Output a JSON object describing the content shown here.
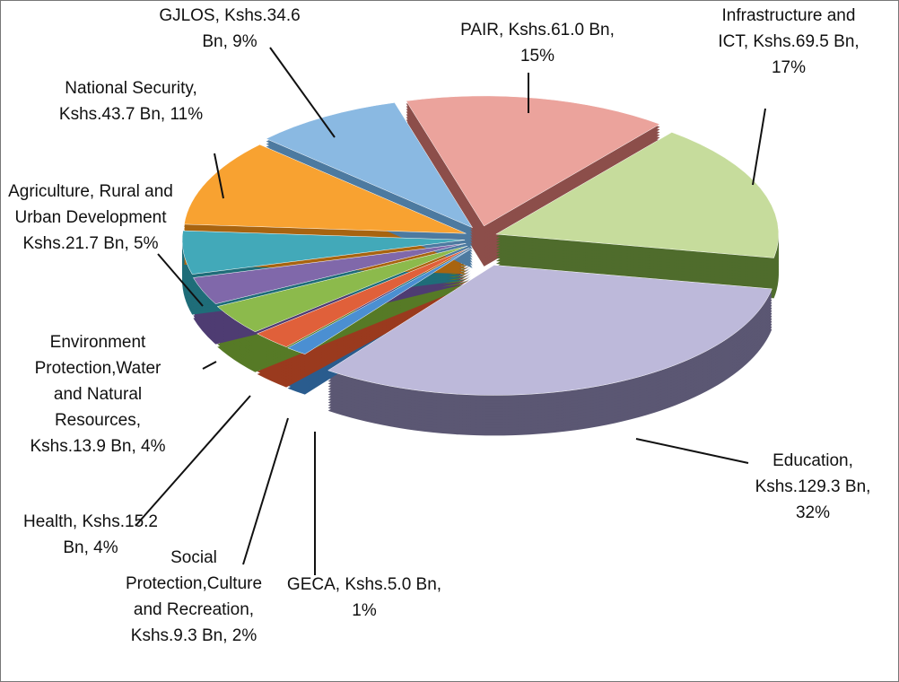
{
  "chart_data": {
    "type": "pie",
    "three_d": true,
    "exploded": true,
    "values": [
      61.0,
      69.5,
      129.3,
      5.0,
      9.3,
      15.2,
      13.9,
      21.7,
      43.7,
      34.6
    ],
    "value_labels": [
      "PAIR, Kshs.61.0 Bn, 15%",
      "Infrastructure and ICT, Kshs.69.5 Bn, 17%",
      "Education, Kshs.129.3 Bn, 32%",
      "GECA, Kshs.5.0 Bn, 1%",
      "Social Protection,Culture and Recreation, Kshs.9.3 Bn, 2%",
      "Health, Kshs.15.2 Bn, 4%",
      "Environment Protection,Water and Natural Resources, Kshs.13.9 Bn, 4%",
      "Agriculture, Rural and Urban Development Kshs.21.7 Bn, 5%",
      "National Security, Kshs.43.7 Bn, 11%",
      "GJLOS, Kshs.34.6 Bn, 9%"
    ],
    "colors": [
      "#eba39c",
      "#c6dc9c",
      "#bdb9da",
      "#4b8fd2",
      "#e0603a",
      "#8cba4c",
      "#8068aa",
      "#42a9b9",
      "#f8a231",
      "#8ab9e2"
    ],
    "side_colors": [
      "#8c4e4a",
      "#4f6c2c",
      "#5b5773",
      "#2a5c8e",
      "#9a3a1e",
      "#567a26",
      "#4e3c72",
      "#1f6d79",
      "#a86410",
      "#4d7aa0"
    ]
  }
}
